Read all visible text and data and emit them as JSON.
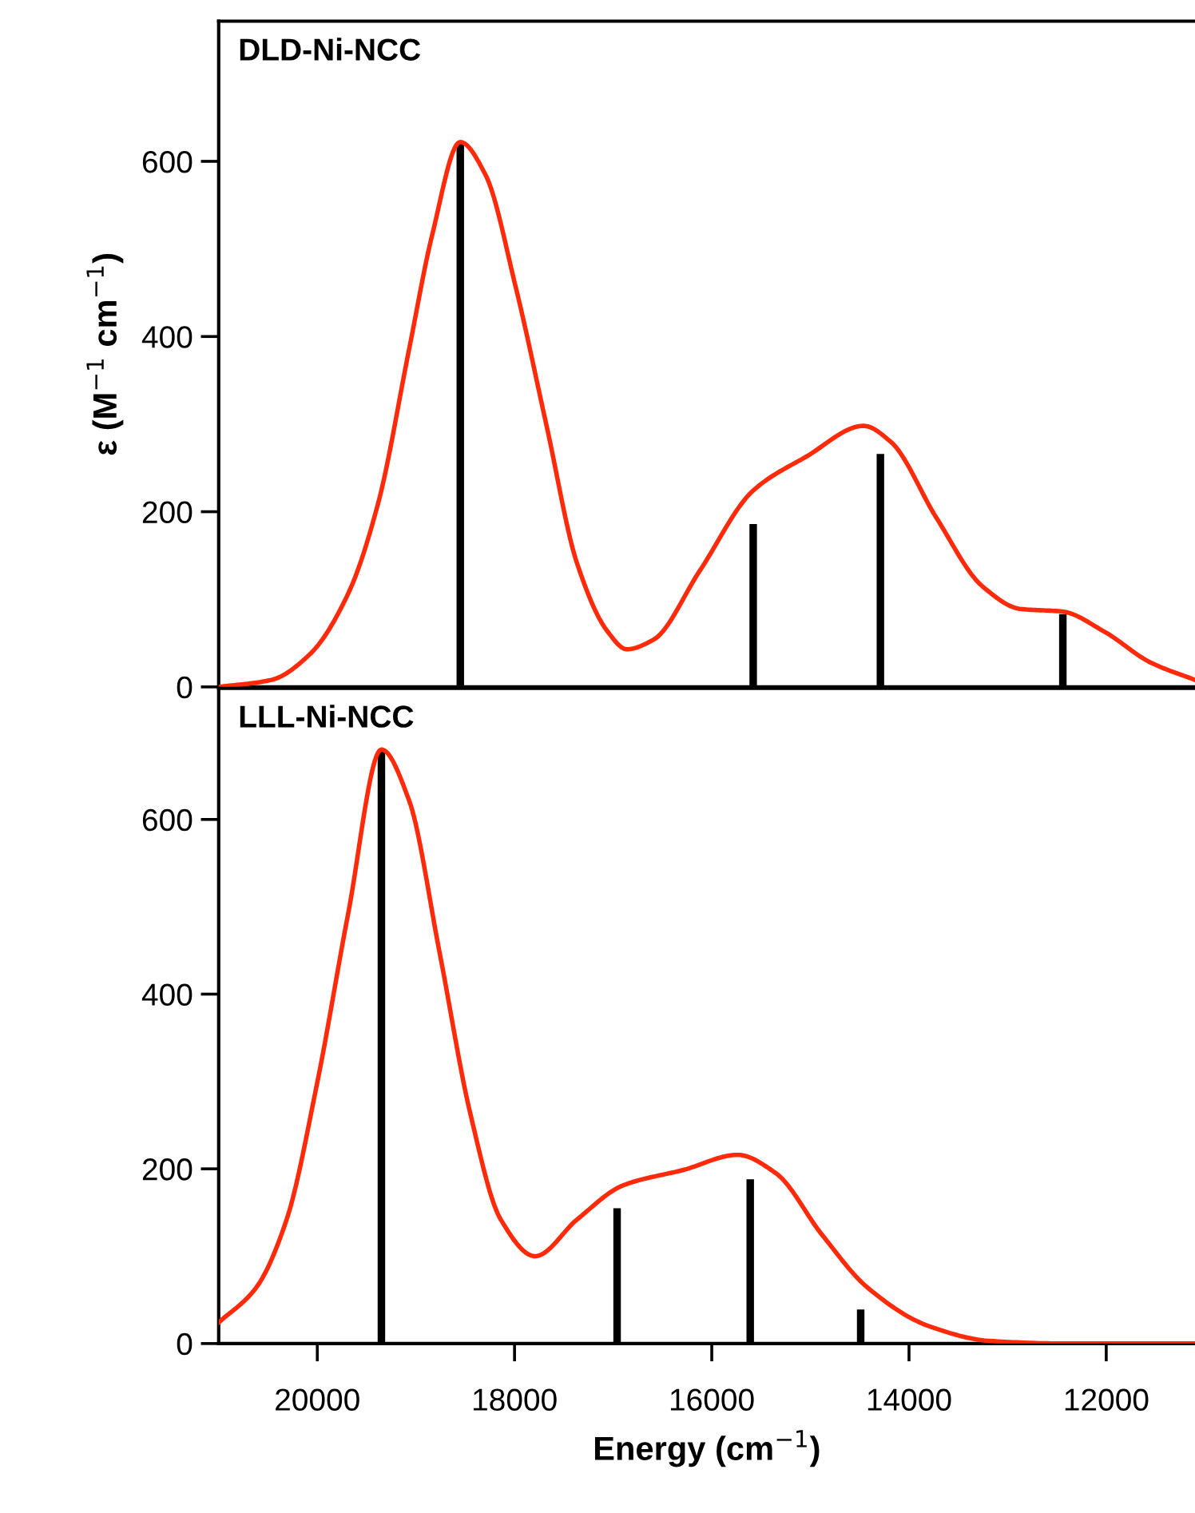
{
  "chart_data": [
    {
      "type": "line",
      "annotations": [
        "DLD-Ni-NCC"
      ],
      "ylabel": "ε (M$^{−1}$ cm$^{−1}$)",
      "xlim": [
        21000,
        11100
      ],
      "xticks": [
        20000,
        18000,
        16000,
        14000,
        12000
      ],
      "ylim": [
        0,
        760
      ],
      "yticks": [
        0,
        200,
        400,
        600
      ],
      "tick_labels": "y",
      "grid": false,
      "series": [
        {
          "color": "#ff2a0a",
          "x": [
            21000,
            20465,
            20078,
            19689,
            19380,
            19070,
            18837,
            18551,
            18296,
            17985,
            17675,
            17366,
            17055,
            16862,
            16590,
            16125,
            15582,
            15040,
            14459,
            14187,
            13722,
            13257,
            12870,
            12444,
            12018,
            11553,
            11102
          ],
          "values": [
            0,
            8,
            37,
            106,
            211,
            385,
            515,
            622,
            585,
            455,
            298,
            141,
            63,
            43,
            54,
            132,
            224,
            263,
            298,
            280,
            193,
            115,
            89,
            86,
            63,
            28,
            8
          ]
        },
        {
          "type": "bar",
          "color": "#000000",
          "x": [
            18550,
            15580,
            14290,
            12440
          ],
          "values": [
            622,
            186,
            266,
            83
          ]
        }
      ]
    },
    {
      "type": "line",
      "annotations": [
        "LLL-Ni-NCC"
      ],
      "xlabel": "Energy (cm$^{−1}$)",
      "xlim": [
        21000,
        11100
      ],
      "xticks": [
        20000,
        18000,
        16000,
        14000,
        12000
      ],
      "ylim": [
        0,
        750
      ],
      "yticks": [
        0,
        200,
        400,
        600
      ],
      "grid": false,
      "series": [
        {
          "color": "#ff2a0a",
          "x": [
            21000,
            20620,
            20311,
            20000,
            19689,
            19350,
            19070,
            18759,
            18450,
            18140,
            17792,
            17366,
            16901,
            16280,
            15738,
            15350,
            14885,
            14420,
            13800,
            13180,
            12404,
            11102
          ],
          "values": [
            24,
            64,
            142,
            299,
            491,
            680,
            622,
            447,
            264,
            142,
            100,
            142,
            181,
            199,
            216,
            195,
            125,
            64,
            20,
            3,
            0,
            0
          ]
        },
        {
          "type": "bar",
          "color": "#000000",
          "x": [
            19350,
            16960,
            15610,
            14490
          ],
          "values": [
            680,
            155,
            188,
            39
          ]
        }
      ]
    }
  ]
}
